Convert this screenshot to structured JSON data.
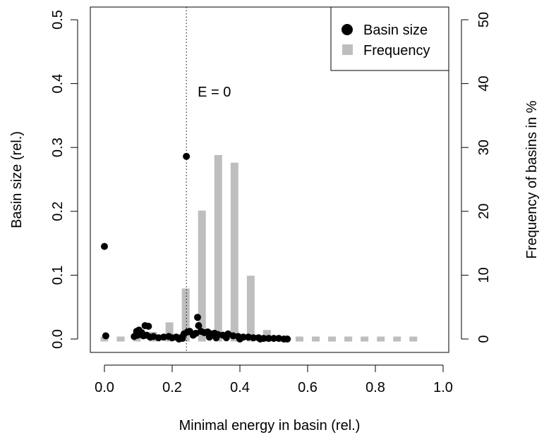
{
  "chart_data": {
    "type": "scatter",
    "xlabel": "Minimal energy in basin (rel.)",
    "ylabel": "Basin size (rel.)",
    "y2label": "Frequency of basins in %",
    "xlim": [
      0,
      1
    ],
    "ylim": [
      0,
      0.5
    ],
    "y2lim": [
      0,
      50
    ],
    "xticks": [
      "0.0",
      "0.2",
      "0.4",
      "0.6",
      "0.8",
      "1.0"
    ],
    "yticks": [
      "0.0",
      "0.1",
      "0.2",
      "0.3",
      "0.4",
      "0.5"
    ],
    "y2ticks": [
      "0",
      "10",
      "20",
      "30",
      "40",
      "50"
    ],
    "grid": false,
    "legend_position": "top-right",
    "legend": [
      "Basin size",
      "Frequency"
    ],
    "annotation": {
      "text": "E = 0",
      "x": 0.242
    },
    "colors": {
      "points": "#000000",
      "bars": "#bebebe"
    },
    "series": [
      {
        "name": "Frequency",
        "kind": "bar",
        "axis": "right",
        "x": [
          0.0,
          0.048,
          0.096,
          0.144,
          0.192,
          0.24,
          0.288,
          0.336,
          0.384,
          0.432,
          0.48,
          0.528,
          0.576,
          0.624,
          0.672,
          0.72,
          0.768,
          0.816,
          0.864,
          0.912
        ],
        "values": [
          0.5,
          0.5,
          0.8,
          1.5,
          3.0,
          8.3,
          20.5,
          29.2,
          28.0,
          10.3,
          1.8,
          0.4,
          0.4,
          0.4,
          0.4,
          0.4,
          0.4,
          0.4,
          0.4,
          0.4
        ]
      },
      {
        "name": "Basin size",
        "kind": "scatter",
        "axis": "left",
        "points": [
          [
            0.0,
            0.145
          ],
          [
            0.004,
            0.005
          ],
          [
            0.242,
            0.286
          ],
          [
            0.275,
            0.034
          ],
          [
            0.278,
            0.021
          ],
          [
            0.12,
            0.021
          ],
          [
            0.13,
            0.02
          ],
          [
            0.095,
            0.012
          ],
          [
            0.102,
            0.014
          ],
          [
            0.11,
            0.01
          ],
          [
            0.088,
            0.004
          ],
          [
            0.098,
            0.006
          ],
          [
            0.106,
            0.008
          ],
          [
            0.115,
            0.005
          ],
          [
            0.125,
            0.006
          ],
          [
            0.135,
            0.003
          ],
          [
            0.145,
            0.004
          ],
          [
            0.16,
            0.002
          ],
          [
            0.175,
            0.003
          ],
          [
            0.19,
            0.004
          ],
          [
            0.2,
            0.002
          ],
          [
            0.212,
            0.003
          ],
          [
            0.225,
            0.002
          ],
          [
            0.235,
            0.008
          ],
          [
            0.245,
            0.011
          ],
          [
            0.252,
            0.012
          ],
          [
            0.262,
            0.006
          ],
          [
            0.27,
            0.009
          ],
          [
            0.285,
            0.012
          ],
          [
            0.295,
            0.01
          ],
          [
            0.305,
            0.011
          ],
          [
            0.315,
            0.008
          ],
          [
            0.325,
            0.009
          ],
          [
            0.335,
            0.007
          ],
          [
            0.35,
            0.006
          ],
          [
            0.365,
            0.008
          ],
          [
            0.38,
            0.005
          ],
          [
            0.395,
            0.004
          ],
          [
            0.41,
            0.003
          ],
          [
            0.425,
            0.003
          ],
          [
            0.44,
            0.002
          ],
          [
            0.455,
            0.002
          ],
          [
            0.47,
            0.001
          ],
          [
            0.485,
            0.001
          ],
          [
            0.5,
            0.001
          ],
          [
            0.515,
            0.001
          ],
          [
            0.53,
            0.0
          ],
          [
            0.54,
            0.0
          ],
          [
            0.22,
            0.0
          ],
          [
            0.23,
            0.001
          ],
          [
            0.31,
            0.003
          ],
          [
            0.33,
            0.002
          ],
          [
            0.36,
            0.002
          ],
          [
            0.4,
            0.0
          ],
          [
            0.46,
            0.0
          ]
        ]
      }
    ]
  }
}
